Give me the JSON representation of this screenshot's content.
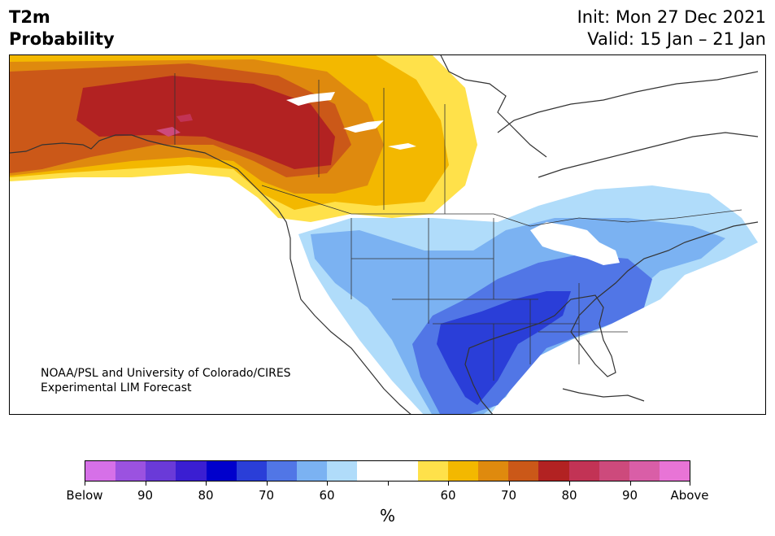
{
  "title": {
    "left_line1": "T2m",
    "left_line2": "Probability",
    "right_line1": "Init: Mon 27 Dec 2021",
    "right_line2": "Valid: 15 Jan – 21 Jan"
  },
  "map": {
    "credit_line1": "NOAA/PSL and University of Colorado/CIRES",
    "credit_line2": "Experimental LIM Forecast",
    "regions": [
      {
        "name": "alaska-northwest-canada",
        "category": "Above 70-80"
      },
      {
        "name": "western-canada",
        "category": "Above 60-70"
      },
      {
        "name": "southern-great-plains-texas",
        "category": "Below 70-80"
      },
      {
        "name": "eastern-us",
        "category": "Below 60-70"
      }
    ]
  },
  "colorbar": {
    "colors": [
      "#d670e8",
      "#9b52e0",
      "#6a3ad8",
      "#3a1ed2",
      "#0000cc",
      "#2a3ed8",
      "#5176e6",
      "#7bb2f2",
      "#b0dcfa",
      "#ffffff",
      "#ffffff",
      "#ffe14a",
      "#f3b800",
      "#df8a0e",
      "#cb5818",
      "#b22222",
      "#c23355",
      "#cd4a7c",
      "#d95ea7",
      "#e874d6"
    ],
    "labels": [
      "Below",
      "90",
      "80",
      "70",
      "60",
      "60",
      "70",
      "80",
      "90",
      "Above"
    ],
    "unit": "%"
  }
}
